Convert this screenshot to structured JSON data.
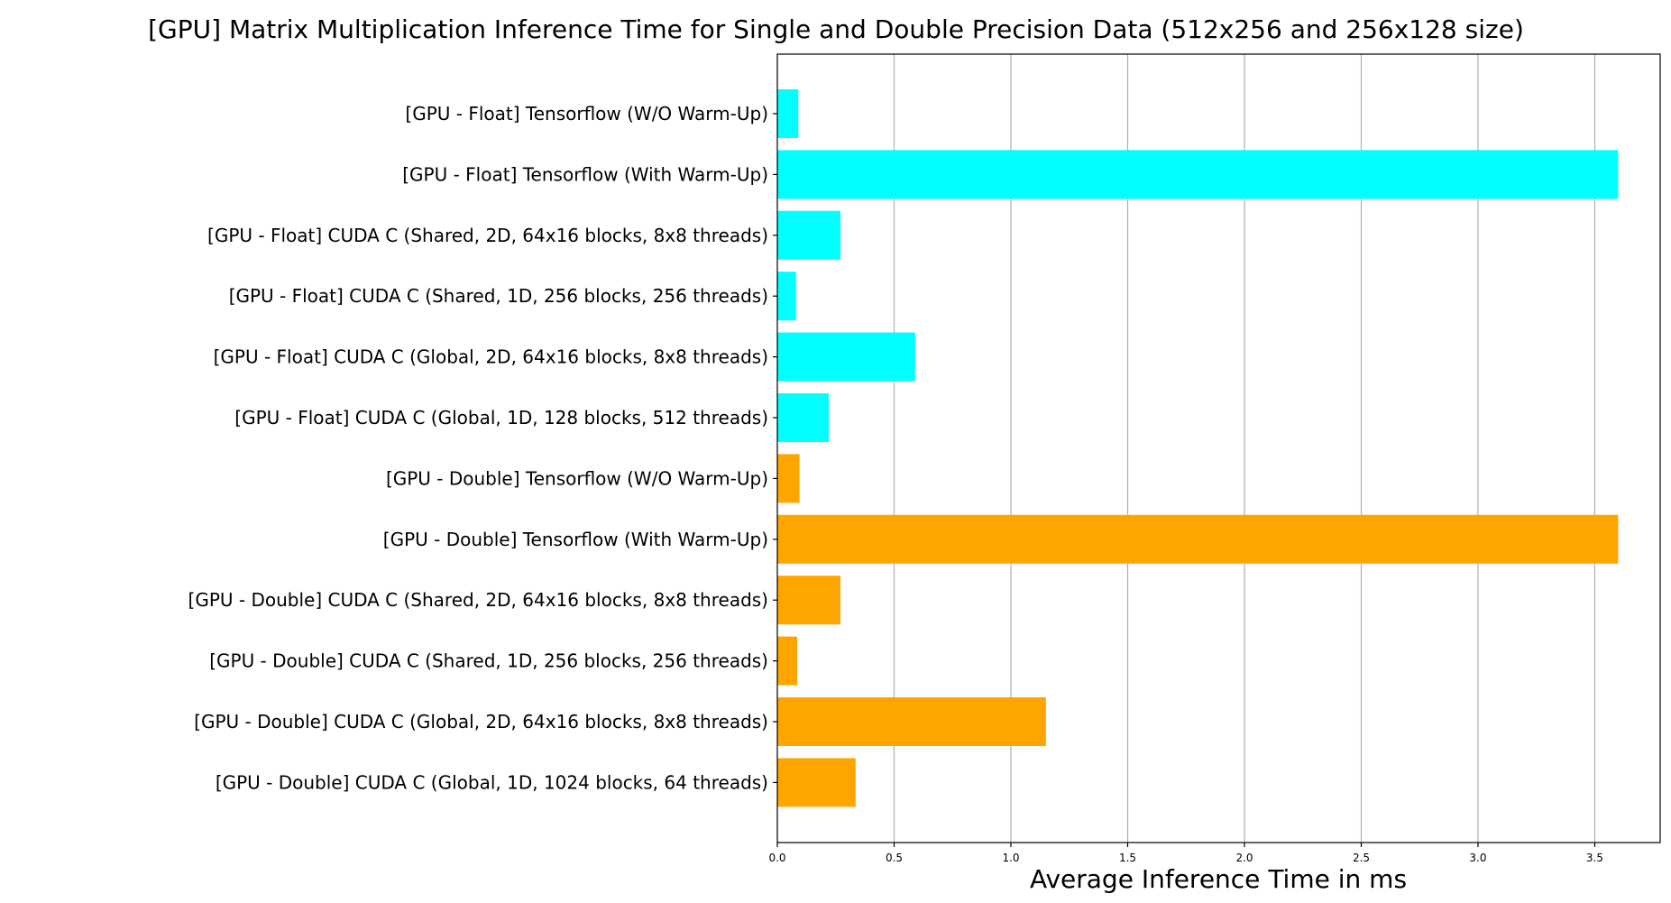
{
  "chart_data": {
    "type": "bar",
    "orientation": "horizontal",
    "title": "[GPU] Matrix Multiplication Inference Time for Single and Double Precision Data (512x256 and 256x128 size)",
    "xlabel": "Average Inference Time in ms",
    "ylabel": "",
    "xlim": [
      0,
      3.78
    ],
    "xticks": [
      "0.0",
      "0.5",
      "1.0",
      "1.5",
      "2.0",
      "2.5",
      "3.0",
      "3.5"
    ],
    "xtick_values": [
      0,
      0.5,
      1.0,
      1.5,
      2.0,
      2.5,
      3.0,
      3.5
    ],
    "grid": "x",
    "colors": {
      "float": "#00ffff",
      "double": "#ffa500"
    },
    "categories": [
      "[GPU - Float] Tensorflow (W/O Warm-Up)",
      "[GPU - Float] Tensorflow (With Warm-Up)",
      "[GPU - Float] CUDA C (Shared, 2D, 64x16 blocks, 8x8 threads)",
      "[GPU - Float] CUDA C (Shared, 1D, 256 blocks, 256 threads)",
      "[GPU - Float] CUDA C (Global, 2D, 64x16 blocks, 8x8 threads)",
      "[GPU - Float] CUDA C (Global, 1D, 128 blocks, 512 threads)",
      "[GPU - Double] Tensorflow (W/O Warm-Up)",
      "[GPU - Double] Tensorflow (With Warm-Up)",
      "[GPU - Double] CUDA C (Shared, 2D, 64x16 blocks, 8x8 threads)",
      "[GPU - Double] CUDA C (Shared, 1D, 256 blocks, 256 threads)",
      "[GPU - Double] CUDA C (Global, 2D, 64x16 blocks, 8x8 threads)",
      "[GPU - Double] CUDA C (Global, 1D, 1024 blocks, 64 threads)"
    ],
    "values": [
      0.09,
      3.6,
      0.27,
      0.08,
      0.59,
      0.22,
      0.095,
      3.6,
      0.27,
      0.085,
      1.15,
      0.335
    ],
    "bar_groups": [
      "float",
      "float",
      "float",
      "float",
      "float",
      "float",
      "double",
      "double",
      "double",
      "double",
      "double",
      "double"
    ]
  }
}
